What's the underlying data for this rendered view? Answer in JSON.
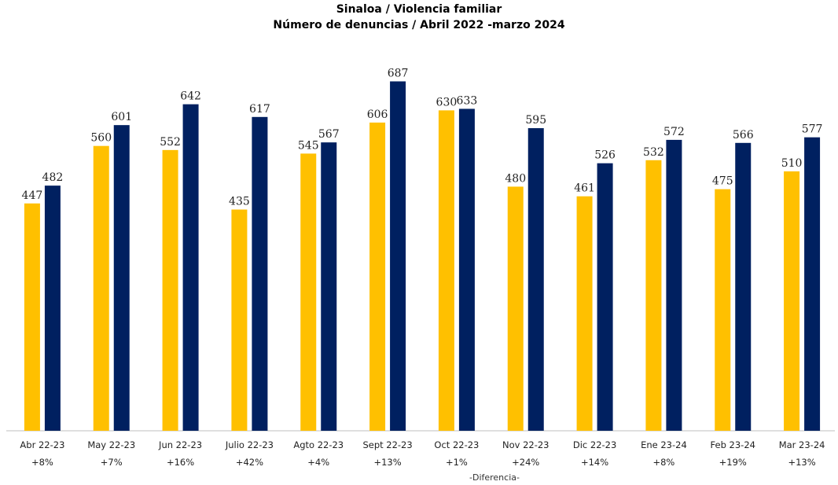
{
  "chart_data": {
    "type": "bar",
    "title": "Sinaloa / Violencia familiar",
    "subtitle": "Número de denuncias / Abril 2022 -marzo 2024",
    "categories": [
      "Abr 22-23",
      "May 22-23",
      "Jun 22-23",
      "Julio 22-23",
      "Agto 22-23",
      "Sept 22-23",
      "Oct 22-23",
      "Nov 22-23",
      "Dic 22-23",
      "Ene 23-24",
      "Feb 23-24",
      "Mar 23-24"
    ],
    "series": [
      {
        "color": "#FFC000",
        "values": [
          447,
          560,
          552,
          435,
          545,
          606,
          630,
          480,
          461,
          532,
          475,
          510
        ]
      },
      {
        "color": "#002060",
        "values": [
          482,
          601,
          642,
          617,
          567,
          687,
          633,
          595,
          526,
          572,
          566,
          577
        ]
      }
    ],
    "differences": [
      "+8%",
      "+7%",
      "+16%",
      "+42%",
      "+4%",
      "+13%",
      "+1%",
      "+24%",
      "+14%",
      "+8%",
      "+19%",
      "+13%"
    ],
    "footnote": "-Diferencia-",
    "ylim": [
      0,
      700
    ],
    "grid": false,
    "legend": "none"
  }
}
